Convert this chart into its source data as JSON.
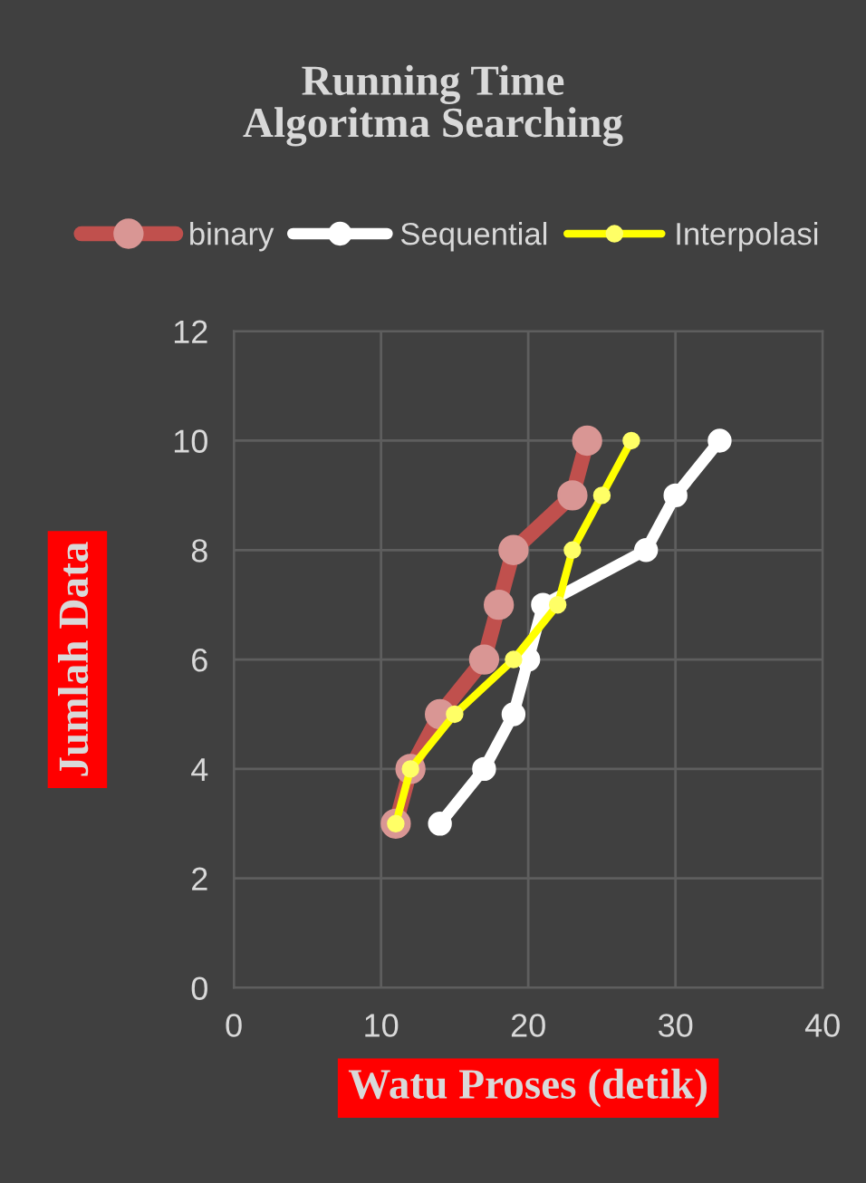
{
  "chart_data": {
    "type": "line",
    "title": "Running Time\nAlgoritma Searching",
    "xlabel": "Watu Proses (detik)",
    "ylabel": "Jumlah Data",
    "xlim": [
      0,
      40
    ],
    "xticks": [
      0,
      10,
      20,
      30,
      40
    ],
    "ylim": [
      0,
      12
    ],
    "yticks": [
      0,
      2,
      4,
      6,
      8,
      10,
      12
    ],
    "grid": true,
    "legend": "top",
    "marker": "circle",
    "series": [
      {
        "name": "binary",
        "color": "#c0504d",
        "x": [
          11,
          12,
          14,
          17,
          18,
          19,
          23,
          24
        ],
        "values": [
          3,
          4,
          5,
          6,
          7,
          8,
          9,
          10
        ]
      },
      {
        "name": "Sequential",
        "color": "#ffffff",
        "x": [
          14,
          17,
          19,
          20,
          21,
          28,
          30,
          33
        ],
        "values": [
          3,
          4,
          5,
          6,
          7,
          8,
          9,
          10
        ]
      },
      {
        "name": "Interpolasi",
        "color": "#ffff00",
        "x": [
          11,
          12,
          15,
          19,
          22,
          23,
          25,
          27
        ],
        "values": [
          3,
          4,
          5,
          6,
          7,
          8,
          9,
          10
        ]
      }
    ]
  }
}
